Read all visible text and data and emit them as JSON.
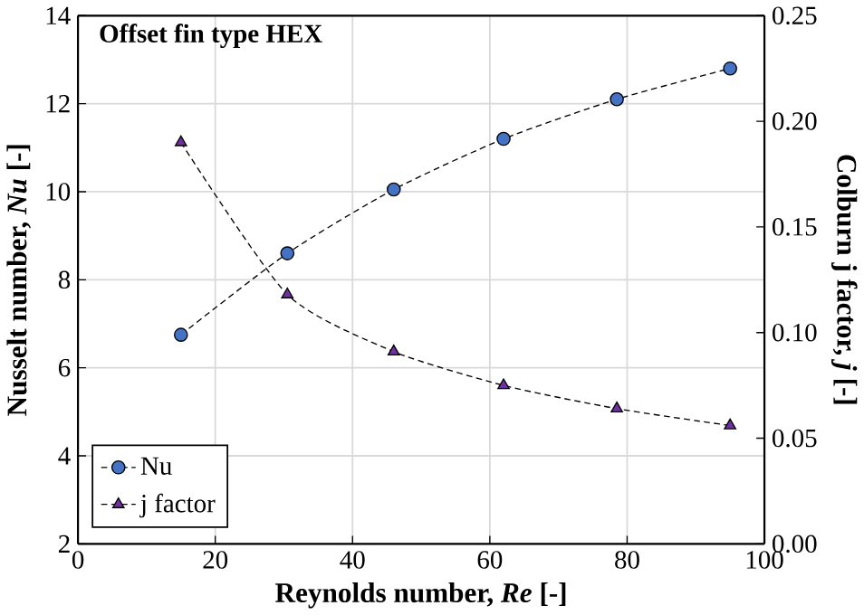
{
  "chart_data": {
    "type": "line",
    "title": "Offset fin type HEX",
    "xlabel": "Reynolds number, *Re* [-]",
    "ylabel": "Nusselt number, *Nu* [-]",
    "y2label": "Colburn j factor, *j* [-]",
    "x": [
      15,
      30.5,
      46,
      62,
      78.5,
      95
    ],
    "series": [
      {
        "name": "Nu",
        "color": "#4472c4",
        "marker": "circle",
        "values": [
          6.75,
          8.6,
          10.05,
          11.2,
          12.1,
          12.8
        ]
      },
      {
        "name": "j factor",
        "color": "#7030a0",
        "marker": "triangle",
        "axis": "y2",
        "values": [
          0.19,
          0.118,
          0.091,
          0.075,
          0.064,
          0.056
        ]
      }
    ],
    "xlim": [
      0,
      100
    ],
    "xticks": [
      0,
      20,
      40,
      60,
      80,
      100
    ],
    "ylim": [
      2,
      14
    ],
    "yticks": [
      2,
      4,
      6,
      8,
      10,
      12,
      14
    ],
    "y2lim": [
      0,
      0.25
    ],
    "y2ticks": [
      {
        "value": 0,
        "label": "0.00"
      },
      {
        "value": 0.05,
        "label": "0.05"
      },
      {
        "value": 0.1,
        "label": "0.10"
      },
      {
        "value": 0.15,
        "label": "0.15"
      },
      {
        "value": 0.2,
        "label": "0.20"
      },
      {
        "value": 0.25,
        "label": "0.25"
      }
    ],
    "grid": true,
    "legend": "bottom left",
    "line_style": "dashed"
  }
}
